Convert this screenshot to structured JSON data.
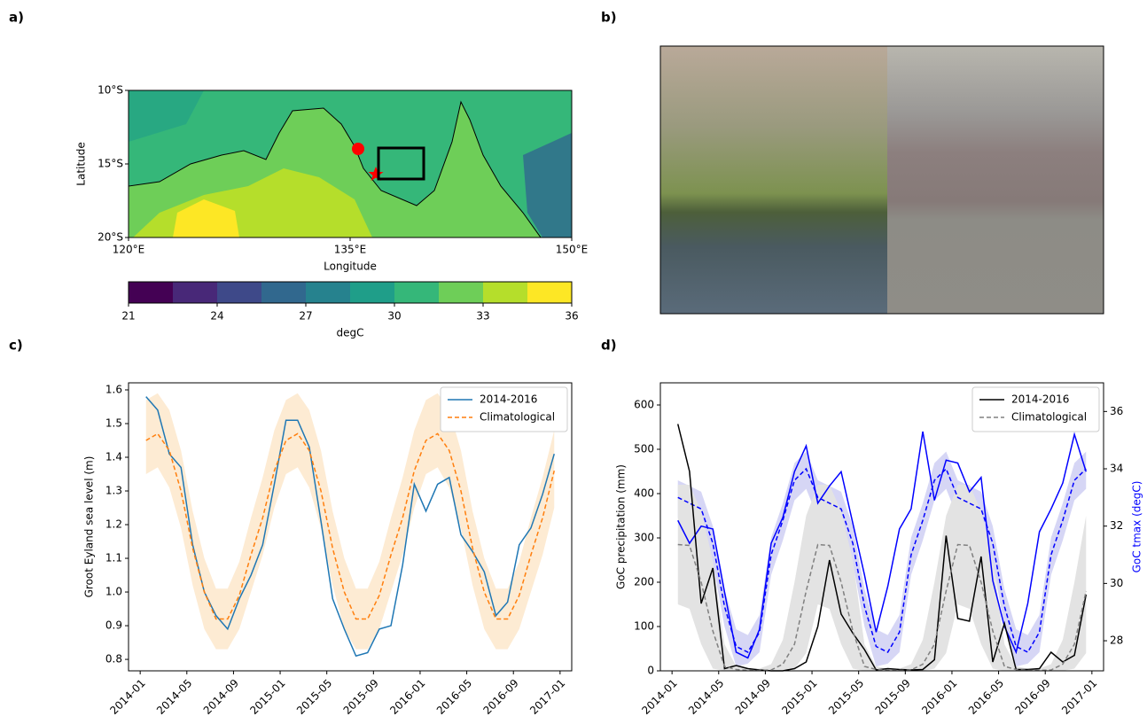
{
  "chart_data": [
    {
      "type": "map",
      "panel_label": "a)",
      "xlabel": "Longitude",
      "ylabel": "Latitude",
      "xlim": [
        120,
        150
      ],
      "ylim": [
        -20,
        -10
      ],
      "xticks": [
        {
          "value": 120,
          "label": "120°E"
        },
        {
          "value": 135,
          "label": "135°E"
        },
        {
          "value": 150,
          "label": "150°E"
        }
      ],
      "yticks": [
        {
          "value": -10,
          "label": "10°S"
        },
        {
          "value": -15,
          "label": "15°S"
        },
        {
          "value": -20,
          "label": "20°S"
        }
      ],
      "colorbar": {
        "label": "degC",
        "clim": [
          21,
          36
        ],
        "ticks": [
          21,
          24,
          27,
          30,
          33,
          36
        ],
        "colors": [
          "#440154",
          "#482878",
          "#3e4989",
          "#31688e",
          "#26828e",
          "#1f9e89",
          "#35b779",
          "#6ece58",
          "#b5de2b",
          "#fde725"
        ]
      }
    },
    {
      "type": "image",
      "panel_label": "b)"
    },
    {
      "type": "line",
      "panel_label": "c)",
      "ylabel": "Groot Eyland sea level (m)",
      "x": [
        "2014-01",
        "2014-02",
        "2014-03",
        "2014-04",
        "2014-05",
        "2014-06",
        "2014-07",
        "2014-08",
        "2014-09",
        "2014-10",
        "2014-11",
        "2014-12",
        "2015-01",
        "2015-02",
        "2015-03",
        "2015-04",
        "2015-05",
        "2015-06",
        "2015-07",
        "2015-08",
        "2015-09",
        "2015-10",
        "2015-11",
        "2015-12",
        "2016-01",
        "2016-02",
        "2016-03",
        "2016-04",
        "2016-05",
        "2016-06",
        "2016-07",
        "2016-08",
        "2016-09",
        "2016-10",
        "2016-11",
        "2016-12"
      ],
      "xlim": [
        "2013-12",
        "2017-02"
      ],
      "xticks": [
        "2014-01",
        "2014-05",
        "2014-09",
        "2015-01",
        "2015-05",
        "2015-09",
        "2016-01",
        "2016-05",
        "2016-09",
        "2017-01"
      ],
      "ylim": [
        0.766,
        1.621
      ],
      "yticks": [
        0.8,
        0.9,
        {
          "value": 1.0,
          "label": "1.0"
        },
        1.1,
        1.2,
        1.3,
        1.4,
        1.5,
        1.6
      ],
      "legend": "upper right",
      "series": [
        {
          "name": "2014-2016",
          "color": "#1f77b4",
          "style": "solid",
          "values": [
            1.58,
            1.54,
            1.41,
            1.37,
            1.14,
            1.0,
            0.93,
            0.89,
            0.98,
            1.05,
            1.14,
            1.32,
            1.51,
            1.51,
            1.43,
            1.21,
            0.98,
            0.89,
            0.81,
            0.82,
            0.89,
            0.9,
            1.08,
            1.32,
            1.24,
            1.32,
            1.34,
            1.17,
            1.12,
            1.06,
            0.93,
            0.97,
            1.14,
            1.19,
            1.29,
            1.41
          ]
        },
        {
          "name": "Climatological",
          "color": "#ff7f0e",
          "style": "dashed",
          "band_color": "#fdebd3",
          "values": [
            1.45,
            1.47,
            1.42,
            1.3,
            1.13,
            1.0,
            0.92,
            0.92,
            0.99,
            1.11,
            1.22,
            1.36,
            1.45,
            1.47,
            1.42,
            1.3,
            1.13,
            1.0,
            0.92,
            0.92,
            0.99,
            1.11,
            1.22,
            1.36,
            1.45,
            1.47,
            1.42,
            1.3,
            1.13,
            1.0,
            0.92,
            0.92,
            0.99,
            1.11,
            1.22,
            1.36
          ],
          "range": {
            "upper": [
              1.57,
              1.59,
              1.54,
              1.42,
              1.24,
              1.1,
              1.01,
              1.01,
              1.09,
              1.22,
              1.34,
              1.48,
              1.57,
              1.59,
              1.54,
              1.42,
              1.24,
              1.1,
              1.01,
              1.01,
              1.09,
              1.22,
              1.34,
              1.48,
              1.57,
              1.59,
              1.54,
              1.42,
              1.24,
              1.1,
              1.01,
              1.01,
              1.09,
              1.22,
              1.34,
              1.48
            ],
            "lower": [
              1.35,
              1.37,
              1.31,
              1.19,
              1.02,
              0.89,
              0.83,
              0.83,
              0.89,
              1.0,
              1.11,
              1.25,
              1.35,
              1.37,
              1.31,
              1.19,
              1.02,
              0.89,
              0.83,
              0.83,
              0.89,
              1.0,
              1.11,
              1.25,
              1.35,
              1.37,
              1.31,
              1.19,
              1.02,
              0.89,
              0.83,
              0.83,
              0.89,
              1.0,
              1.11,
              1.25
            ]
          }
        }
      ]
    },
    {
      "type": "line",
      "panel_label": "d)",
      "ylabel": "GoC precipitation (mm)",
      "y2label": "GoC tmax (degC)",
      "y2label_color": "#0000ff",
      "x": [
        "2014-01",
        "2014-02",
        "2014-03",
        "2014-04",
        "2014-05",
        "2014-06",
        "2014-07",
        "2014-08",
        "2014-09",
        "2014-10",
        "2014-11",
        "2014-12",
        "2015-01",
        "2015-02",
        "2015-03",
        "2015-04",
        "2015-05",
        "2015-06",
        "2015-07",
        "2015-08",
        "2015-09",
        "2015-10",
        "2015-11",
        "2015-12",
        "2016-01",
        "2016-02",
        "2016-03",
        "2016-04",
        "2016-05",
        "2016-06",
        "2016-07",
        "2016-08",
        "2016-09",
        "2016-10",
        "2016-11",
        "2016-12"
      ],
      "xlim": [
        "2013-12",
        "2017-02"
      ],
      "xticks": [
        "2014-01",
        "2014-05",
        "2014-09",
        "2015-01",
        "2015-05",
        "2015-09",
        "2016-01",
        "2016-05",
        "2016-09",
        "2017-01"
      ],
      "ylim": [
        0,
        650
      ],
      "yticks": [
        0,
        100,
        200,
        300,
        400,
        500,
        600
      ],
      "y2lim": [
        26.95,
        37.0
      ],
      "y2ticks": [
        28,
        30,
        32,
        34,
        36
      ],
      "legend": "upper right",
      "series": [
        {
          "color": "#0000ff",
          "style": "solid",
          "axis": "y2",
          "values": [
            32.2,
            31.4,
            32.0,
            31.9,
            29.7,
            27.6,
            27.4,
            28.4,
            31.4,
            32.3,
            33.9,
            34.8,
            32.8,
            33.4,
            33.9,
            32.1,
            30.3,
            28.3,
            29.9,
            31.9,
            32.6,
            35.3,
            32.9,
            34.3,
            34.2,
            33.2,
            33.7,
            30.1,
            28.5,
            27.6,
            29.3,
            31.8,
            32.6,
            33.5,
            35.2,
            33.9
          ]
        },
        {
          "color": "#0000ff",
          "style": "dashed",
          "axis": "y2",
          "band_color": "#d6d6f5",
          "values": [
            33.0,
            32.8,
            32.6,
            31.4,
            29.2,
            27.8,
            27.6,
            28.3,
            31.0,
            32.2,
            33.6,
            34.0,
            33.0,
            32.8,
            32.6,
            31.4,
            29.2,
            27.8,
            27.6,
            28.3,
            31.0,
            32.2,
            33.6,
            34.0,
            33.0,
            32.8,
            32.6,
            31.4,
            29.2,
            27.8,
            27.6,
            28.3,
            31.0,
            32.2,
            33.6,
            34.0
          ],
          "range": {
            "upper": [
              33.6,
              33.4,
              33.2,
              32.0,
              29.8,
              28.4,
              28.2,
              28.9,
              31.6,
              32.8,
              34.2,
              34.6,
              33.6,
              33.4,
              33.2,
              32.0,
              29.8,
              28.4,
              28.2,
              28.9,
              31.6,
              32.8,
              34.2,
              34.6,
              33.6,
              33.4,
              33.2,
              32.0,
              29.8,
              28.4,
              28.2,
              28.9,
              31.6,
              32.8,
              34.2,
              34.6
            ],
            "lower": [
              32.3,
              32.1,
              31.9,
              30.7,
              28.5,
              27.1,
              27.2,
              27.6,
              30.3,
              31.5,
              32.9,
              33.3,
              32.3,
              32.1,
              31.9,
              30.7,
              28.5,
              27.1,
              27.2,
              27.6,
              30.3,
              31.5,
              32.9,
              33.3,
              32.3,
              32.1,
              31.9,
              30.7,
              28.5,
              27.1,
              27.2,
              27.6,
              30.3,
              31.5,
              32.9,
              33.3
            ]
          }
        },
        {
          "name": "2014-2016",
          "color": "#000000",
          "style": "solid",
          "values": [
            557,
            450,
            152,
            232,
            5,
            12,
            5,
            2,
            0,
            0,
            5,
            20,
            100,
            250,
            128,
            85,
            48,
            2,
            5,
            3,
            2,
            3,
            25,
            305,
            118,
            112,
            258,
            20,
            107,
            3,
            3,
            5,
            42,
            20,
            35,
            172
          ]
        },
        {
          "name": "Climatological",
          "color": "#808080",
          "style": "dashed",
          "band_color": "#e3e3e3",
          "values": [
            285,
            283,
            200,
            90,
            10,
            3,
            1,
            1,
            2,
            15,
            60,
            180,
            285,
            283,
            200,
            90,
            10,
            3,
            1,
            1,
            2,
            15,
            60,
            180,
            285,
            283,
            200,
            90,
            10,
            3,
            1,
            1,
            2,
            15,
            60,
            180
          ],
          "range": {
            "upper": [
              420,
              420,
              360,
              250,
              60,
              10,
              5,
              5,
              15,
              70,
              200,
              350,
              420,
              420,
              360,
              250,
              60,
              10,
              5,
              5,
              15,
              70,
              200,
              350,
              420,
              420,
              360,
              250,
              60,
              10,
              5,
              5,
              15,
              70,
              200,
              350
            ],
            "lower": [
              150,
              140,
              60,
              5,
              0,
              0,
              0,
              0,
              0,
              0,
              5,
              40,
              150,
              140,
              60,
              5,
              0,
              0,
              0,
              0,
              0,
              0,
              5,
              40,
              150,
              140,
              60,
              5,
              0,
              0,
              0,
              0,
              0,
              0,
              5,
              40
            ]
          }
        }
      ]
    }
  ]
}
